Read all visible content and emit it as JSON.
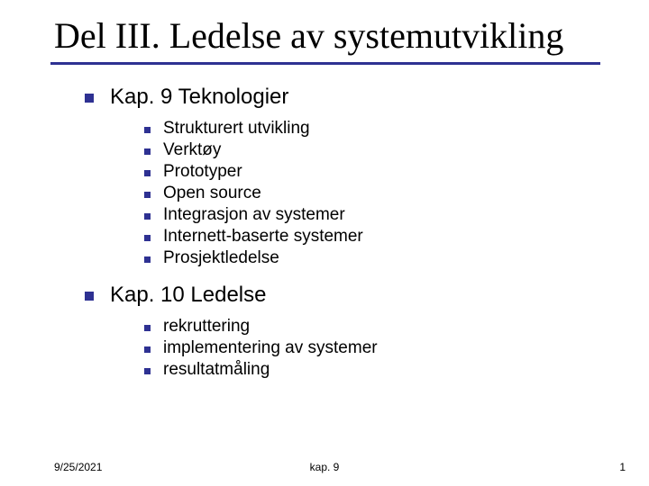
{
  "colors": {
    "background": "#ffffff",
    "text": "#000000",
    "accent": "#2e3192",
    "underline": "#2e3192"
  },
  "typography": {
    "title_font": "Times New Roman",
    "body_font": "Verdana",
    "title_fontsize": 40,
    "lvl1_fontsize": 24,
    "lvl2_fontsize": 19,
    "footer_fontsize": 12
  },
  "bullets": {
    "lvl1_size": 10,
    "lvl2_size": 7,
    "color": "#2e3192"
  },
  "title": "Del III. Ledelse av systemutvikling",
  "sections": [
    {
      "label": "Kap. 9 Teknologier",
      "items": [
        "Strukturert utvikling",
        "Verktøy",
        "Prototyper",
        "Open source",
        "Integrasjon av systemer",
        "Internett-baserte systemer",
        "Prosjektledelse"
      ]
    },
    {
      "label": "Kap. 10 Ledelse",
      "items": [
        "rekruttering",
        "implementering av systemer",
        "resultatmåling"
      ]
    }
  ],
  "footer": {
    "date": "9/25/2021",
    "center": "kap. 9",
    "page": "1"
  }
}
